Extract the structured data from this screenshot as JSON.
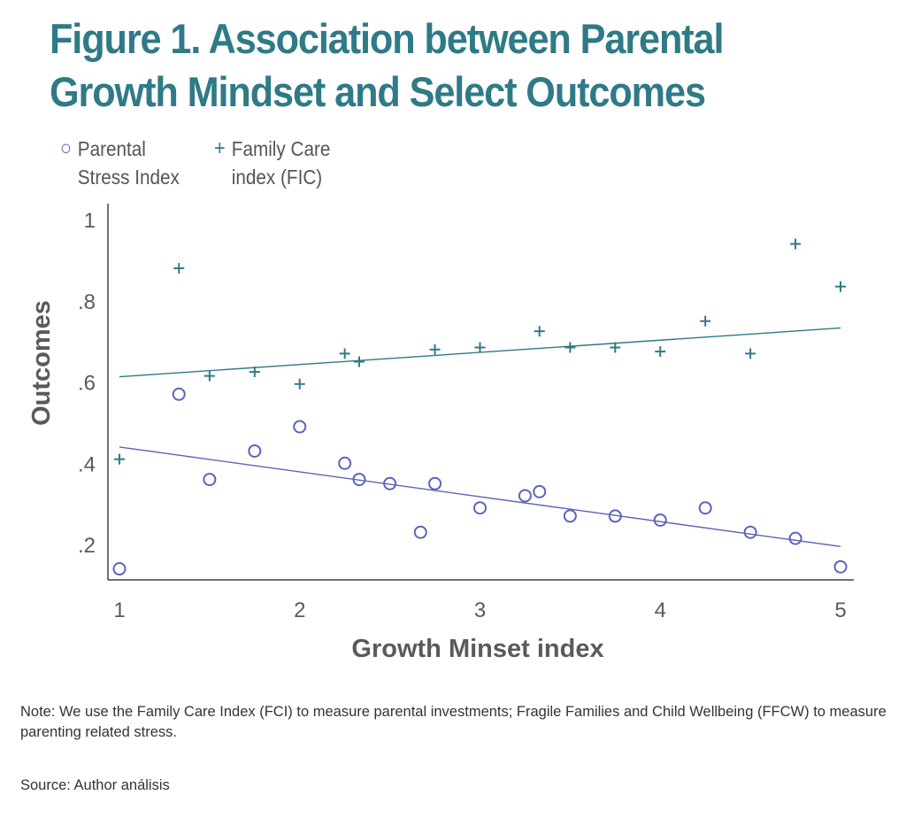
{
  "title_lines": [
    "Figure 1. Association between Parental",
    "Growth Mindset and Select Outcomes"
  ],
  "legend": [
    {
      "symbol": "○",
      "line1": "Parental",
      "line2": "Stress Index",
      "color": "#5b64b8"
    },
    {
      "symbol": "+",
      "line1": "Family Care",
      "line2": "index (FIC)",
      "color": "#2f7a87"
    }
  ],
  "note": "Note: We use the Family Care Index (FCI) to measure parental investments; Fragile Families and Child Wellbeing (FFCW) to measure parenting related stress.",
  "source": "Source: Author análisis",
  "chart_data": {
    "type": "scatter",
    "title": "Figure 1. Association between Parental Growth Mindset and Select Outcomes",
    "xlabel": "Growth Minset index",
    "ylabel": "Outcomes",
    "xlim": [
      0.95,
      5.07
    ],
    "ylim": [
      0.11,
      1.04
    ],
    "xticks": [
      1,
      2,
      3,
      4,
      5
    ],
    "xtick_labels": [
      "1",
      "2",
      "3",
      "4",
      "5"
    ],
    "yticks": [
      0.2,
      0.4,
      0.6,
      0.8,
      1.0
    ],
    "ytick_labels": [
      ".2",
      ".4",
      ".6",
      ".8",
      "1"
    ],
    "grid": false,
    "legend_position": "top-left",
    "series": [
      {
        "name": "Parental Stress Index",
        "marker": "circle",
        "color": "#5b64b8",
        "points": [
          [
            1.0,
            0.14
          ],
          [
            1.33,
            0.57
          ],
          [
            1.5,
            0.36
          ],
          [
            1.75,
            0.43
          ],
          [
            2.0,
            0.49
          ],
          [
            2.25,
            0.4
          ],
          [
            2.33,
            0.36
          ],
          [
            2.5,
            0.35
          ],
          [
            2.67,
            0.23
          ],
          [
            2.75,
            0.35
          ],
          [
            3.0,
            0.29
          ],
          [
            3.25,
            0.32
          ],
          [
            3.33,
            0.33
          ],
          [
            3.5,
            0.27
          ],
          [
            3.75,
            0.27
          ],
          [
            4.0,
            0.26
          ],
          [
            4.25,
            0.29
          ],
          [
            4.5,
            0.23
          ],
          [
            4.75,
            0.215
          ],
          [
            5.0,
            0.145
          ]
        ],
        "fit_line": [
          [
            1.0,
            0.44
          ],
          [
            5.0,
            0.195
          ]
        ]
      },
      {
        "name": "Family Care index (FIC)",
        "marker": "plus",
        "color": "#2f7a87",
        "points": [
          [
            1.0,
            0.41
          ],
          [
            1.33,
            0.88
          ],
          [
            1.5,
            0.615
          ],
          [
            1.75,
            0.625
          ],
          [
            2.0,
            0.595
          ],
          [
            2.25,
            0.67
          ],
          [
            2.33,
            0.65
          ],
          [
            2.75,
            0.68
          ],
          [
            3.0,
            0.685
          ],
          [
            3.33,
            0.725
          ],
          [
            3.5,
            0.685
          ],
          [
            3.75,
            0.685
          ],
          [
            4.0,
            0.675
          ],
          [
            4.25,
            0.75
          ],
          [
            4.5,
            0.67
          ],
          [
            4.75,
            0.94
          ],
          [
            5.0,
            0.835
          ]
        ],
        "fit_line": [
          [
            1.0,
            0.613
          ],
          [
            5.0,
            0.733
          ]
        ]
      }
    ]
  }
}
